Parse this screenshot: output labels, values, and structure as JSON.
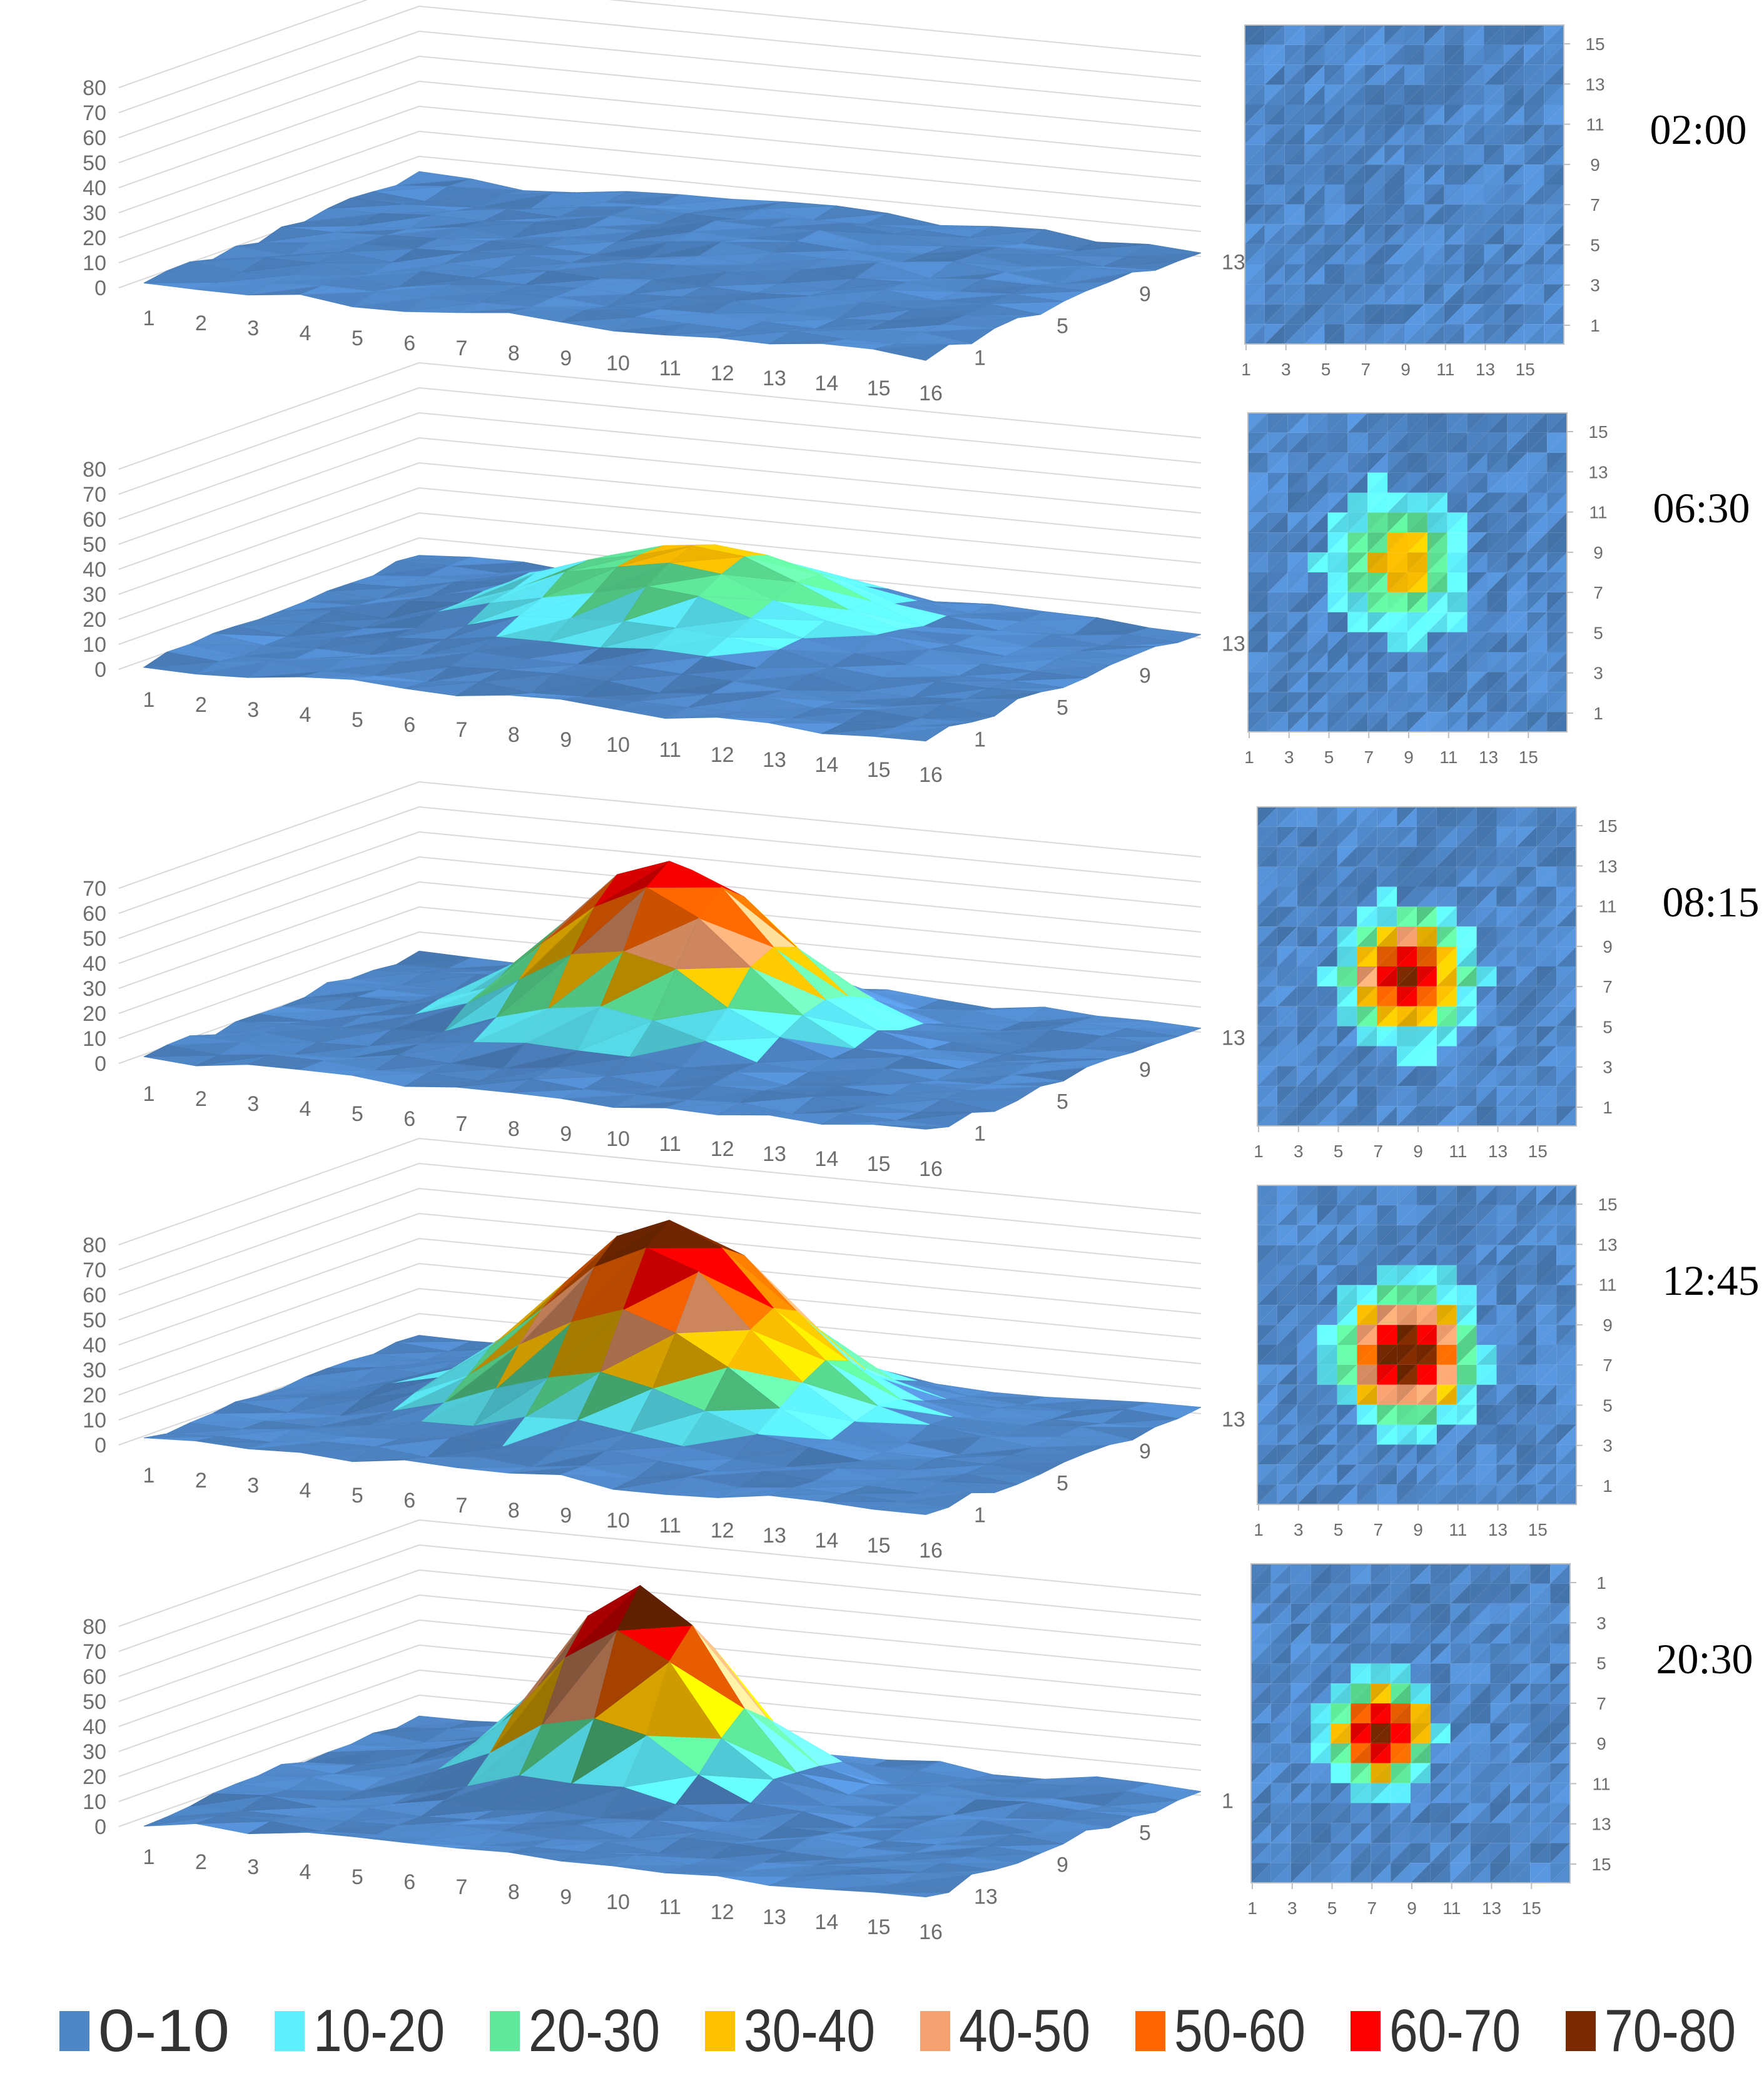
{
  "legend": {
    "items": [
      {
        "label": "0-10",
        "color": "#4f86c6"
      },
      {
        "label": "10-20",
        "color": "#5ff0ff"
      },
      {
        "label": "20-30",
        "color": "#5fe89a"
      },
      {
        "label": "30-40",
        "color": "#ffc000"
      },
      {
        "label": "40-50",
        "color": "#f5a070"
      },
      {
        "label": "50-60",
        "color": "#ff6600"
      },
      {
        "label": "60-70",
        "color": "#ff0000"
      },
      {
        "label": "70-80",
        "color": "#7a2a00"
      }
    ]
  },
  "chart_data": [
    {
      "type": "surface",
      "time_label": "02:00",
      "x_ticks": [
        "1",
        "2",
        "3",
        "4",
        "5",
        "6",
        "7",
        "8",
        "9",
        "10",
        "11",
        "12",
        "13",
        "14",
        "15",
        "16"
      ],
      "y_ticks": [
        "1",
        "5",
        "9",
        "13"
      ],
      "z_ticks": [
        "0",
        "10",
        "20",
        "30",
        "40",
        "50",
        "60",
        "70",
        "80"
      ],
      "zlim": [
        0,
        80
      ],
      "peak": {
        "x": 9,
        "y": 9,
        "value": 6
      },
      "spread": 3.0
    },
    {
      "type": "surface",
      "time_label": "06:30",
      "x_ticks": [
        "1",
        "2",
        "3",
        "4",
        "5",
        "6",
        "7",
        "8",
        "9",
        "10",
        "11",
        "12",
        "13",
        "14",
        "15",
        "16"
      ],
      "y_ticks": [
        "1",
        "5",
        "9",
        "13"
      ],
      "z_ticks": [
        "0",
        "10",
        "20",
        "30",
        "40",
        "50",
        "60",
        "70",
        "80"
      ],
      "zlim": [
        0,
        80
      ],
      "peak": {
        "x": 8,
        "y": 9,
        "value": 32
      },
      "spread": 2.4
    },
    {
      "type": "surface",
      "time_label": "08:15",
      "x_ticks": [
        "1",
        "2",
        "3",
        "4",
        "5",
        "6",
        "7",
        "8",
        "9",
        "10",
        "11",
        "12",
        "13",
        "14",
        "15",
        "16"
      ],
      "y_ticks": [
        "1",
        "5",
        "9",
        "13"
      ],
      "z_ticks": [
        "0",
        "10",
        "20",
        "30",
        "40",
        "50",
        "60",
        "70"
      ],
      "zlim": [
        0,
        70
      ],
      "peak": {
        "x": 8,
        "y": 8,
        "value": 68
      },
      "spread": 1.9
    },
    {
      "type": "surface",
      "time_label": "12:45",
      "x_ticks": [
        "1",
        "2",
        "3",
        "4",
        "5",
        "6",
        "7",
        "8",
        "9",
        "10",
        "11",
        "12",
        "13",
        "14",
        "15",
        "16"
      ],
      "y_ticks": [
        "1",
        "5",
        "9",
        "13"
      ],
      "z_ticks": [
        "0",
        "10",
        "20",
        "30",
        "40",
        "50",
        "60",
        "70",
        "80"
      ],
      "zlim": [
        0,
        80
      ],
      "peak": {
        "x": 8,
        "y": 8,
        "value": 78
      },
      "spread": 2.0
    },
    {
      "type": "surface",
      "time_label": "20:30",
      "x_ticks": [
        "1",
        "2",
        "3",
        "4",
        "5",
        "6",
        "7",
        "8",
        "9",
        "10",
        "11",
        "12",
        "13",
        "14",
        "15",
        "16"
      ],
      "y_ticks": [
        "13",
        "9",
        "5",
        "1"
      ],
      "z_ticks": [
        "0",
        "10",
        "20",
        "30",
        "40",
        "50",
        "60",
        "70",
        "80"
      ],
      "zlim": [
        0,
        80
      ],
      "peak": {
        "x": 7,
        "y": 9,
        "value": 80
      },
      "spread": 1.5
    },
    {
      "type": "heatmap",
      "time_label": "02:00",
      "x_ticks": [
        "1",
        "3",
        "5",
        "7",
        "9",
        "11",
        "13",
        "15"
      ],
      "y_ticks": [
        "15",
        "13",
        "11",
        "9",
        "7",
        "5",
        "3",
        "1"
      ]
    },
    {
      "type": "heatmap",
      "time_label": "06:30",
      "x_ticks": [
        "1",
        "3",
        "5",
        "7",
        "9",
        "11",
        "13",
        "15"
      ],
      "y_ticks": [
        "15",
        "13",
        "11",
        "9",
        "7",
        "5",
        "3",
        "1"
      ]
    },
    {
      "type": "heatmap",
      "time_label": "08:15",
      "x_ticks": [
        "1",
        "3",
        "5",
        "7",
        "9",
        "11",
        "13",
        "15"
      ],
      "y_ticks": [
        "15",
        "13",
        "11",
        "9",
        "7",
        "5",
        "3",
        "1"
      ]
    },
    {
      "type": "heatmap",
      "time_label": "12:45",
      "x_ticks": [
        "1",
        "3",
        "5",
        "7",
        "9",
        "11",
        "13",
        "15"
      ],
      "y_ticks": [
        "15",
        "13",
        "11",
        "9",
        "7",
        "5",
        "3",
        "1"
      ]
    },
    {
      "type": "heatmap",
      "time_label": "20:30",
      "x_ticks": [
        "1",
        "3",
        "5",
        "7",
        "9",
        "11",
        "13",
        "15"
      ],
      "y_ticks": [
        "1",
        "3",
        "5",
        "7",
        "9",
        "11",
        "13",
        "15"
      ]
    }
  ]
}
